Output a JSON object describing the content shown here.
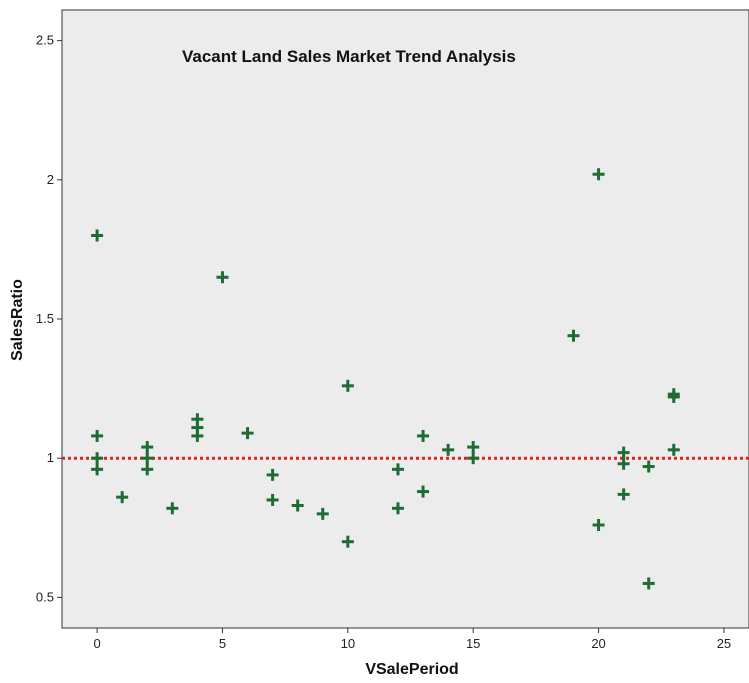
{
  "chart_data": {
    "type": "scatter",
    "title": "Vacant Land Sales Market Trend Analysis",
    "xlabel": "VSalePeriod",
    "ylabel": "SalesRatio",
    "xlim": [
      -1.4,
      26
    ],
    "ylim": [
      0.39,
      2.61
    ],
    "xticks": [
      0,
      5,
      10,
      15,
      20,
      25
    ],
    "yticks": [
      0.5,
      1,
      1.5,
      2,
      2.5
    ],
    "xtick_labels": [
      "0",
      "5",
      "10",
      "15",
      "20",
      "25"
    ],
    "ytick_labels": [
      "0.5",
      "1",
      "1.5",
      "2",
      "2.5"
    ],
    "grid": false,
    "reference_line": {
      "y": 1.0,
      "style": "dotted",
      "color": "#e02020"
    },
    "colors": {
      "marker": "#1e6b34",
      "plot_bg": "#ececec",
      "frame": "#333333"
    },
    "marker": "plus",
    "points": [
      [
        0,
        1.8
      ],
      [
        0,
        1.08
      ],
      [
        0,
        1.0
      ],
      [
        0,
        0.96
      ],
      [
        1,
        0.86
      ],
      [
        2,
        1.04
      ],
      [
        2,
        1.0
      ],
      [
        2,
        0.96
      ],
      [
        3,
        0.82
      ],
      [
        4,
        1.14
      ],
      [
        4,
        1.11
      ],
      [
        4,
        1.08
      ],
      [
        5,
        1.65
      ],
      [
        6,
        1.09
      ],
      [
        7,
        0.94
      ],
      [
        7,
        0.85
      ],
      [
        8,
        0.83
      ],
      [
        9,
        0.8
      ],
      [
        10,
        1.26
      ],
      [
        10,
        0.7
      ],
      [
        12,
        0.96
      ],
      [
        12,
        0.82
      ],
      [
        13,
        1.08
      ],
      [
        13,
        0.88
      ],
      [
        14,
        1.03
      ],
      [
        15,
        1.04
      ],
      [
        15,
        1.0
      ],
      [
        19,
        1.44
      ],
      [
        20,
        2.02
      ],
      [
        20,
        0.76
      ],
      [
        21,
        1.02
      ],
      [
        21,
        0.98
      ],
      [
        21,
        0.87
      ],
      [
        22,
        0.97
      ],
      [
        22,
        0.55
      ],
      [
        23,
        1.23
      ],
      [
        23,
        1.22
      ],
      [
        23,
        1.03
      ]
    ]
  }
}
